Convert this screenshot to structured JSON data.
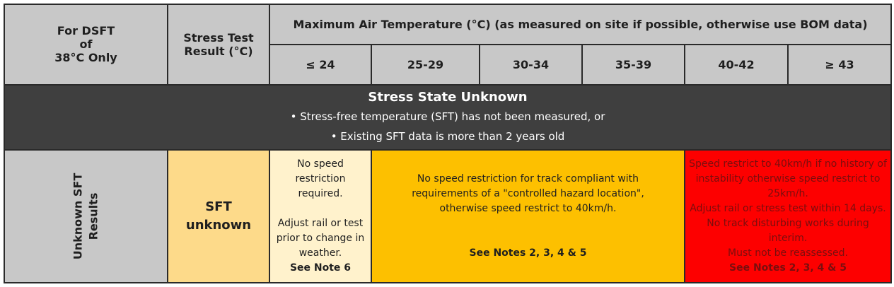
{
  "header": {
    "dsft": [
      "For DSFT",
      "of",
      "38°C Only"
    ],
    "stress_test": [
      "Stress Test",
      "Result (°C)"
    ],
    "max_air_temp": "Maximum Air Temperature (°C) (as measured on site if possible, otherwise use BOM data)",
    "ranges": [
      "≤ 24",
      "25-29",
      "30-34",
      "35-39",
      "40-42",
      "≥ 43"
    ]
  },
  "band": {
    "title": "Stress State Unknown",
    "bullets": [
      "• Stress-free temperature (SFT) has not been measured, or",
      "• Existing SFT data is more than 2 years old"
    ]
  },
  "row": {
    "label": [
      "Unknown SFT",
      "Results"
    ],
    "sft": [
      "SFT",
      "unknown"
    ],
    "cool": {
      "lines": [
        "No speed restriction",
        "required.",
        "",
        "Adjust rail or test",
        "prior to change in",
        "weather."
      ],
      "note": "See Note 6"
    },
    "warm": {
      "lines": [
        "No speed restriction for track compliant with",
        "requirements of a \"controlled hazard location\",",
        "otherwise speed restrict to 40km/h."
      ],
      "note": "See Notes 2, 3, 4 & 5"
    },
    "hot": {
      "lines": [
        "Speed restrict to 40km/h if no history of",
        "instability otherwise speed restrict to",
        "25km/h.",
        "Adjust rail or stress test within 14 days.",
        "No track disturbing works during interim.",
        "Must not be reassessed."
      ],
      "note": "See Notes 2, 3, 4 & 5"
    }
  },
  "colors": {
    "header_bg": "#c8c8c8",
    "band_bg": "#3f3f3f",
    "sft_bg": "#fdda8a",
    "cool_bg": "#fff2cc",
    "warm_bg": "#fdc000",
    "hot_bg": "#fd0000"
  }
}
